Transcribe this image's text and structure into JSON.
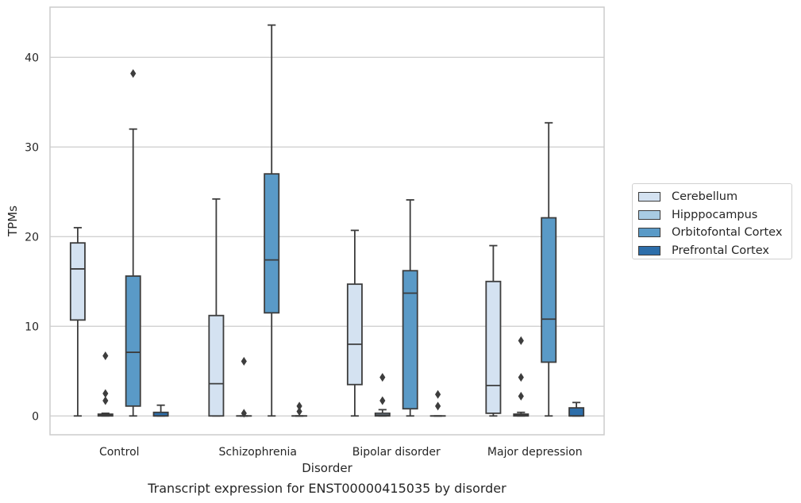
{
  "chart_data": {
    "type": "box",
    "caption": "Transcript expression for ENST00000415035 by disorder",
    "xlabel": "Disorder",
    "ylabel": "TPMs",
    "ylim": [
      -2.1,
      45.6
    ],
    "yticks": [
      0,
      10,
      20,
      30,
      40
    ],
    "categories": [
      "Control",
      "Schizophrenia",
      "Bipolar disorder",
      "Major depression"
    ],
    "grid": "horizontal",
    "legend_position": "center-right",
    "series": [
      {
        "name": "Cerebellum",
        "color": "#d4e2f1",
        "boxes": [
          {
            "whisker_low": 0,
            "q1": 10.7,
            "median": 16.4,
            "q3": 19.3,
            "whisker_high": 21.0,
            "outliers": []
          },
          {
            "whisker_low": 0,
            "q1": 0,
            "median": 3.6,
            "q3": 11.2,
            "whisker_high": 24.2,
            "outliers": []
          },
          {
            "whisker_low": 0,
            "q1": 3.5,
            "median": 8.0,
            "q3": 14.7,
            "whisker_high": 20.7,
            "outliers": []
          },
          {
            "whisker_low": 0,
            "q1": 0.3,
            "median": 3.4,
            "q3": 15.0,
            "whisker_high": 19.0,
            "outliers": []
          }
        ]
      },
      {
        "name": "Hipppocampus",
        "color": "#a8cbe3",
        "boxes": [
          {
            "whisker_low": 0,
            "q1": 0,
            "median": 0.1,
            "q3": 0.2,
            "whisker_high": 0.3,
            "outliers": [
              1.7,
              2.5,
              6.7
            ]
          },
          {
            "whisker_low": 0,
            "q1": 0,
            "median": 0,
            "q3": 0,
            "whisker_high": 0,
            "outliers": [
              0.3,
              6.1
            ]
          },
          {
            "whisker_low": 0,
            "q1": 0,
            "median": 0.1,
            "q3": 0.3,
            "whisker_high": 0.7,
            "outliers": [
              1.7,
              4.3
            ]
          },
          {
            "whisker_low": 0,
            "q1": 0,
            "median": 0.1,
            "q3": 0.2,
            "whisker_high": 0.4,
            "outliers": [
              2.2,
              4.3,
              8.4
            ]
          }
        ]
      },
      {
        "name": "Orbitofontal Cortex",
        "color": "#5a9ac7",
        "boxes": [
          {
            "whisker_low": 0,
            "q1": 1.1,
            "median": 7.1,
            "q3": 15.6,
            "whisker_high": 32.0,
            "outliers": [
              38.2
            ]
          },
          {
            "whisker_low": 0,
            "q1": 11.5,
            "median": 17.4,
            "q3": 27.0,
            "whisker_high": 43.6,
            "outliers": []
          },
          {
            "whisker_low": 0,
            "q1": 0.8,
            "median": 13.7,
            "q3": 16.2,
            "whisker_high": 24.1,
            "outliers": []
          },
          {
            "whisker_low": 0,
            "q1": 6.0,
            "median": 10.8,
            "q3": 22.1,
            "whisker_high": 32.7,
            "outliers": []
          }
        ]
      },
      {
        "name": "Prefrontal Cortex",
        "color": "#2d6eaa",
        "boxes": [
          {
            "whisker_low": 0,
            "q1": 0,
            "median": 0,
            "q3": 0.4,
            "whisker_high": 1.2,
            "outliers": []
          },
          {
            "whisker_low": 0,
            "q1": 0,
            "median": 0,
            "q3": 0,
            "whisker_high": 0,
            "outliers": [
              0.5,
              1.1
            ]
          },
          {
            "whisker_low": 0,
            "q1": 0,
            "median": 0,
            "q3": 0,
            "whisker_high": 0,
            "outliers": [
              1.1,
              2.4
            ]
          },
          {
            "whisker_low": 0,
            "q1": 0,
            "median": 0,
            "q3": 0.9,
            "whisker_high": 1.5,
            "outliers": []
          }
        ]
      }
    ]
  }
}
